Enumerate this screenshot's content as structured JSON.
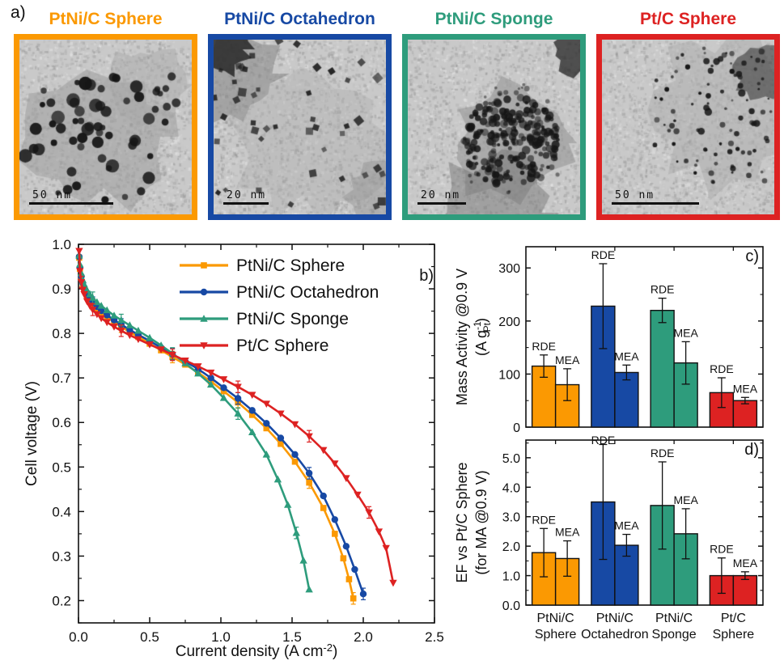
{
  "panel_a": {
    "letter": "a)",
    "tems": [
      {
        "title": "PtNi/C Sphere",
        "color": "#FB9902",
        "scalebar": "50 nm",
        "scalebar_width": 104,
        "style": "round"
      },
      {
        "title": "PtNi/C Octahedron",
        "color": "#1749A4",
        "scalebar": "20 nm",
        "scalebar_width": 56,
        "style": "faceted"
      },
      {
        "title": "PtNi/C Sponge",
        "color": "#2E9C7C",
        "scalebar": "20 nm",
        "scalebar_width": 60,
        "style": "sponge"
      },
      {
        "title": "Pt/C Sphere",
        "color": "#DD2222",
        "scalebar": "50 nm",
        "scalebar_width": 108,
        "style": "dots"
      }
    ]
  },
  "chart_data": [
    {
      "type": "line",
      "panel_label": "b)",
      "xlabel_parts": {
        "pre": "Current density (A cm",
        "sup": "-2",
        "post": ")"
      },
      "ylabel": "Cell voltage (V)",
      "xlim": [
        0.0,
        2.5
      ],
      "ylim": [
        0.15,
        1.0
      ],
      "xticks": [
        0.0,
        0.5,
        1.0,
        1.5,
        2.0,
        2.5
      ],
      "yticks": [
        0.2,
        0.3,
        0.4,
        0.5,
        0.6,
        0.7,
        0.8,
        0.9,
        1.0
      ],
      "grid": false,
      "legend_position": "top-center-inside",
      "series": [
        {
          "name": "PtNi/C Sphere",
          "color": "#FB9902",
          "marker": "square",
          "x": [
            0.005,
            0.01,
            0.02,
            0.03,
            0.04,
            0.06,
            0.08,
            0.1,
            0.13,
            0.16,
            0.2,
            0.25,
            0.3,
            0.36,
            0.42,
            0.5,
            0.58,
            0.66,
            0.75,
            0.84,
            0.93,
            1.02,
            1.12,
            1.22,
            1.32,
            1.42,
            1.52,
            1.62,
            1.72,
            1.8,
            1.86,
            1.9,
            1.93
          ],
          "y": [
            0.97,
            0.945,
            0.925,
            0.91,
            0.9,
            0.885,
            0.875,
            0.866,
            0.856,
            0.847,
            0.837,
            0.825,
            0.815,
            0.803,
            0.792,
            0.777,
            0.762,
            0.747,
            0.73,
            0.712,
            0.692,
            0.67,
            0.645,
            0.617,
            0.587,
            0.552,
            0.512,
            0.465,
            0.408,
            0.35,
            0.295,
            0.248,
            0.205
          ]
        },
        {
          "name": "PtNi/C Octahedron",
          "color": "#1749A4",
          "marker": "circle",
          "x": [
            0.005,
            0.01,
            0.02,
            0.03,
            0.04,
            0.06,
            0.08,
            0.1,
            0.13,
            0.16,
            0.2,
            0.25,
            0.3,
            0.36,
            0.42,
            0.5,
            0.58,
            0.66,
            0.75,
            0.84,
            0.93,
            1.02,
            1.12,
            1.22,
            1.32,
            1.42,
            1.52,
            1.62,
            1.72,
            1.8,
            1.88,
            1.94,
            2.0
          ],
          "y": [
            0.972,
            0.948,
            0.928,
            0.913,
            0.903,
            0.888,
            0.878,
            0.869,
            0.86,
            0.851,
            0.841,
            0.83,
            0.82,
            0.808,
            0.797,
            0.783,
            0.768,
            0.753,
            0.737,
            0.72,
            0.7,
            0.678,
            0.654,
            0.627,
            0.598,
            0.565,
            0.528,
            0.486,
            0.435,
            0.382,
            0.322,
            0.27,
            0.215
          ]
        },
        {
          "name": "PtNi/C Sponge",
          "color": "#2E9C7C",
          "marker": "triangle-up",
          "x": [
            0.005,
            0.01,
            0.02,
            0.03,
            0.04,
            0.06,
            0.08,
            0.1,
            0.13,
            0.16,
            0.2,
            0.25,
            0.3,
            0.36,
            0.42,
            0.5,
            0.58,
            0.66,
            0.75,
            0.84,
            0.93,
            1.02,
            1.12,
            1.22,
            1.32,
            1.4,
            1.47,
            1.53,
            1.58,
            1.62
          ],
          "y": [
            0.975,
            0.955,
            0.935,
            0.92,
            0.91,
            0.897,
            0.888,
            0.88,
            0.87,
            0.862,
            0.852,
            0.84,
            0.83,
            0.818,
            0.806,
            0.79,
            0.773,
            0.755,
            0.733,
            0.71,
            0.685,
            0.655,
            0.62,
            0.578,
            0.528,
            0.472,
            0.415,
            0.352,
            0.29,
            0.225
          ]
        },
        {
          "name": "Pt/C Sphere",
          "color": "#DD2222",
          "marker": "triangle-down",
          "x": [
            0.005,
            0.01,
            0.02,
            0.03,
            0.04,
            0.06,
            0.08,
            0.1,
            0.13,
            0.16,
            0.2,
            0.25,
            0.3,
            0.36,
            0.42,
            0.5,
            0.58,
            0.66,
            0.75,
            0.84,
            0.93,
            1.02,
            1.12,
            1.22,
            1.32,
            1.42,
            1.52,
            1.62,
            1.72,
            1.8,
            1.88,
            1.96,
            2.04,
            2.11,
            2.16,
            2.21
          ],
          "y": [
            0.985,
            0.94,
            0.915,
            0.898,
            0.888,
            0.872,
            0.862,
            0.853,
            0.843,
            0.834,
            0.825,
            0.815,
            0.806,
            0.796,
            0.787,
            0.775,
            0.764,
            0.752,
            0.739,
            0.726,
            0.712,
            0.697,
            0.68,
            0.662,
            0.642,
            0.62,
            0.596,
            0.569,
            0.538,
            0.508,
            0.475,
            0.438,
            0.398,
            0.355,
            0.318,
            0.24
          ]
        }
      ]
    },
    {
      "type": "bar",
      "panel_label": "c)",
      "ylabel_lines": [
        {
          "text": "Mass Activity @0.9 V"
        },
        {
          "pre": "(A g",
          "sup": "-1",
          "sub": "Pt",
          "post": ")"
        }
      ],
      "ylim": [
        0,
        340
      ],
      "yticks": [
        0,
        100,
        200,
        300
      ],
      "ytick_decimals": 0,
      "categories": [
        "PtNi/C Sphere",
        "PtNi/C Octahedron",
        "PtNi/C Sponge",
        "Pt/C Sphere"
      ],
      "colors": [
        "#FB9902",
        "#1749A4",
        "#2E9C7C",
        "#DD2222"
      ],
      "series": [
        {
          "name": "RDE",
          "values": [
            115,
            228,
            220,
            65
          ],
          "errors": [
            21,
            80,
            23,
            28
          ]
        },
        {
          "name": "MEA",
          "values": [
            80,
            103,
            121,
            50
          ],
          "errors": [
            30,
            14,
            40,
            6
          ]
        }
      ]
    },
    {
      "type": "bar",
      "panel_label": "d)",
      "ylabel_lines": [
        {
          "text": "EF vs Pt/C Sphere"
        },
        {
          "text": "(for MA @0.9 V)"
        }
      ],
      "ylim": [
        0,
        5.6
      ],
      "yticks": [
        0,
        1,
        2,
        3,
        4,
        5
      ],
      "ytick_decimals": 1,
      "categories_line1": [
        "PtNi/C",
        "PtNi/C",
        "PtNi/C",
        "Pt/C"
      ],
      "categories_line2": [
        "Sphere",
        "Octahedron",
        "Sponge",
        "Sphere"
      ],
      "colors": [
        "#FB9902",
        "#1749A4",
        "#2E9C7C",
        "#DD2222"
      ],
      "series": [
        {
          "name": "RDE",
          "values": [
            1.78,
            3.5,
            3.38,
            1.0
          ],
          "errors": [
            0.82,
            1.95,
            1.48,
            0.6
          ]
        },
        {
          "name": "MEA",
          "values": [
            1.58,
            2.03,
            2.42,
            1.0
          ],
          "errors": [
            0.6,
            0.37,
            0.85,
            0.13
          ]
        }
      ]
    }
  ]
}
